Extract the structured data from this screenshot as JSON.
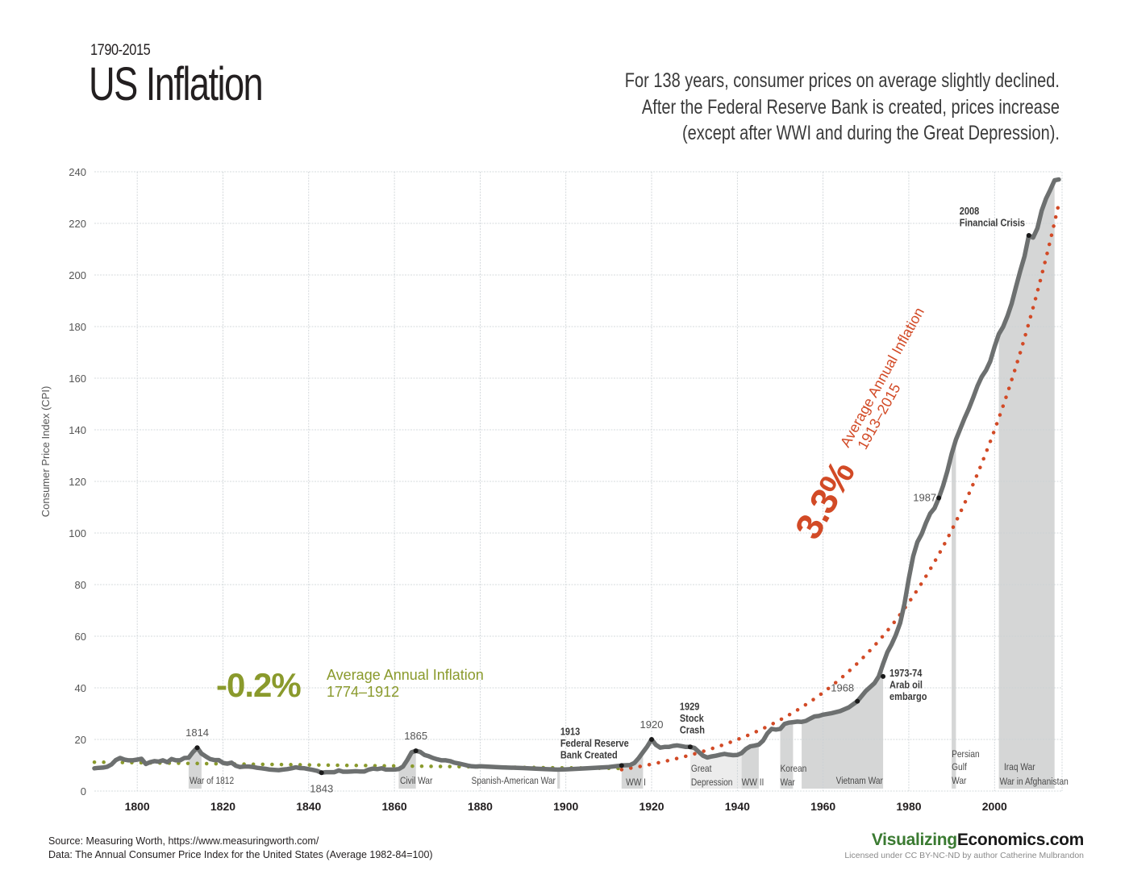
{
  "header": {
    "years": "1790-2015",
    "title": "US Inflation",
    "description": [
      "For 138 years, consumer prices on average slightly declined.",
      "After the Federal Reserve Bank is created, prices increase",
      "(except after WWI and during the Great Depression)."
    ]
  },
  "footer": {
    "source_line": "Source: Measuring Worth, https://www.measuringworth.com/",
    "data_line": "Data: The Annual Consumer Price Index for the United States (Average 1982-84=100)",
    "brand_part1": "Visualizing",
    "brand_part2": "Economics.com",
    "license": "Licensed under CC BY-NC-ND by author Catherine Mulbrandon"
  },
  "colors": {
    "cpi_line": "#6d7070",
    "pre_fed_trend": "#8a9a2c",
    "post_fed_trend": "#d24a26",
    "war_shade": "#d5d6d6",
    "depression_shade": "#ececec",
    "grid": "#c9cfd3"
  },
  "chart_data": {
    "type": "line",
    "title": "US Inflation",
    "xlabel": "",
    "ylabel": "Consumer Price Index (CPI)",
    "xlim": [
      1790,
      2015
    ],
    "ylim": [
      0,
      240
    ],
    "grid": true,
    "x_ticks": [
      1800,
      1820,
      1840,
      1860,
      1880,
      1900,
      1920,
      1940,
      1960,
      1980,
      2000
    ],
    "y_ticks": [
      0,
      20,
      40,
      60,
      80,
      100,
      120,
      140,
      160,
      180,
      200,
      220,
      240
    ],
    "series": [
      {
        "name": "CPI",
        "x": [
          1790,
          1791,
          1792,
          1793,
          1794,
          1795,
          1796,
          1797,
          1798,
          1799,
          1800,
          1801,
          1802,
          1803,
          1804,
          1805,
          1806,
          1807,
          1808,
          1809,
          1810,
          1811,
          1812,
          1813,
          1814,
          1815,
          1816,
          1817,
          1818,
          1819,
          1820,
          1821,
          1822,
          1823,
          1824,
          1825,
          1826,
          1827,
          1828,
          1829,
          1830,
          1831,
          1832,
          1833,
          1834,
          1835,
          1836,
          1837,
          1838,
          1839,
          1840,
          1841,
          1842,
          1843,
          1844,
          1845,
          1846,
          1847,
          1848,
          1849,
          1850,
          1851,
          1852,
          1853,
          1854,
          1855,
          1856,
          1857,
          1858,
          1859,
          1860,
          1861,
          1862,
          1863,
          1864,
          1865,
          1866,
          1867,
          1868,
          1869,
          1870,
          1871,
          1872,
          1873,
          1874,
          1875,
          1876,
          1877,
          1878,
          1879,
          1880,
          1885,
          1890,
          1895,
          1898,
          1900,
          1905,
          1910,
          1913,
          1914,
          1915,
          1916,
          1917,
          1918,
          1919,
          1920,
          1921,
          1922,
          1923,
          1924,
          1925,
          1926,
          1927,
          1928,
          1929,
          1930,
          1931,
          1932,
          1933,
          1934,
          1935,
          1936,
          1937,
          1938,
          1939,
          1940,
          1941,
          1942,
          1943,
          1944,
          1945,
          1946,
          1947,
          1948,
          1949,
          1950,
          1951,
          1952,
          1953,
          1954,
          1955,
          1956,
          1957,
          1958,
          1959,
          1960,
          1962,
          1964,
          1966,
          1968,
          1970,
          1972,
          1973,
          1974,
          1975,
          1976,
          1977,
          1978,
          1979,
          1980,
          1981,
          1982,
          1983,
          1984,
          1985,
          1986,
          1987,
          1988,
          1989,
          1990,
          1991,
          1992,
          1993,
          1994,
          1995,
          1996,
          1997,
          1998,
          1999,
          2000,
          2001,
          2002,
          2003,
          2004,
          2005,
          2006,
          2007,
          2008,
          2009,
          2010,
          2011,
          2012,
          2013,
          2014,
          2015
        ],
        "values": [
          8.8,
          9.0,
          9.1,
          9.4,
          10.3,
          12.0,
          12.8,
          12.2,
          11.9,
          11.9,
          12.2,
          12.5,
          10.5,
          11.2,
          11.6,
          11.4,
          11.9,
          11.2,
          12.4,
          11.9,
          11.9,
          12.8,
          12.9,
          15.1,
          16.8,
          14.5,
          13.4,
          12.4,
          12.0,
          12.0,
          10.9,
          10.6,
          11.0,
          9.8,
          9.3,
          9.5,
          9.5,
          9.3,
          9.0,
          8.8,
          8.6,
          8.3,
          8.2,
          8.1,
          8.3,
          8.5,
          8.8,
          9.2,
          8.9,
          8.8,
          8.5,
          8.2,
          7.8,
          7.1,
          7.3,
          7.3,
          7.3,
          8.0,
          7.5,
          7.5,
          7.6,
          7.7,
          7.6,
          7.6,
          8.3,
          8.7,
          8.5,
          8.8,
          8.3,
          8.3,
          8.3,
          8.5,
          9.5,
          12.0,
          15.0,
          15.6,
          15.2,
          14.0,
          13.5,
          12.8,
          12.3,
          11.9,
          11.9,
          11.6,
          11.0,
          10.7,
          10.3,
          9.9,
          9.6,
          9.5,
          9.6,
          9.2,
          8.9,
          8.5,
          8.3,
          8.4,
          8.8,
          9.3,
          9.9,
          10.0,
          10.1,
          10.9,
          12.8,
          15.1,
          17.3,
          20.0,
          17.9,
          16.8,
          17.1,
          17.1,
          17.5,
          17.7,
          17.4,
          17.1,
          17.1,
          16.7,
          15.2,
          13.7,
          13.0,
          13.4,
          13.7,
          14.1,
          14.4,
          14.1,
          13.9,
          14.0,
          14.7,
          16.3,
          17.3,
          17.6,
          18.0,
          19.5,
          22.3,
          24.1,
          23.8,
          24.1,
          26.0,
          26.5,
          26.7,
          26.9,
          26.8,
          27.2,
          28.1,
          28.9,
          29.1,
          29.6,
          30.2,
          31.0,
          32.4,
          34.8,
          38.8,
          41.8,
          44.4,
          49.3,
          53.8,
          56.9,
          60.6,
          65.2,
          72.6,
          82.4,
          90.9,
          96.5,
          99.6,
          103.9,
          107.6,
          109.6,
          113.6,
          118.3,
          124.0,
          130.7,
          136.2,
          140.3,
          144.5,
          148.2,
          152.4,
          156.9,
          160.5,
          163.0,
          166.6,
          172.2,
          177.1,
          179.9,
          184.0,
          188.9,
          195.3,
          201.6,
          207.3,
          215.3,
          214.5,
          218.1,
          224.9,
          229.6,
          233.0,
          236.7,
          237.0
        ]
      },
      {
        "name": "Average Annual Inflation 1774-1912 trend",
        "rate_percent": -0.2,
        "x_range": [
          1790,
          1913
        ],
        "start_value": 11.2
      },
      {
        "name": "Average Annual Inflation 1913-2015 trend",
        "rate_percent": 3.3,
        "x_range": [
          1913,
          2015
        ],
        "start_value": 8.3
      }
    ],
    "shaded_periods": [
      {
        "label": "War of  1812",
        "start": 1812,
        "end": 1815,
        "kind": "war"
      },
      {
        "label": "Civil  War",
        "start": 1861,
        "end": 1865,
        "kind": "war"
      },
      {
        "label": "Spanish-American War",
        "start": 1898,
        "end": 1898.6,
        "kind": "war"
      },
      {
        "label": "WW I",
        "start": 1913,
        "end": 1918,
        "kind": "war"
      },
      {
        "label": "Great Depression",
        "start": 1929,
        "end": 1941,
        "kind": "depression"
      },
      {
        "label": "WW II",
        "start": 1941,
        "end": 1945,
        "kind": "war"
      },
      {
        "label": "Korean War",
        "start": 1950,
        "end": 1953,
        "kind": "war"
      },
      {
        "label": "Vietnam War",
        "start": 1955,
        "end": 1974,
        "kind": "war"
      },
      {
        "label": "Persian Gulf War",
        "start": 1990,
        "end": 1991,
        "kind": "war"
      },
      {
        "label": "Iraq War / War in Afghanistan",
        "start": 2001,
        "end": 2014,
        "kind": "war"
      }
    ],
    "point_labels": [
      {
        "year": 1814,
        "value": 16.8,
        "label": "1814"
      },
      {
        "year": 1843,
        "value": 7.1,
        "label": "1843"
      },
      {
        "year": 1865,
        "value": 15.6,
        "label": "1865"
      },
      {
        "year": 1920,
        "value": 20.0,
        "label": "1920"
      },
      {
        "year": 1968,
        "value": 34.8,
        "label": "1968"
      },
      {
        "year": 1987,
        "value": 113.6,
        "label": "1987"
      }
    ],
    "event_labels": [
      {
        "year": 1913,
        "value": 9.9,
        "lines": [
          "1913",
          "Federal Reserve",
          "Bank Created"
        ]
      },
      {
        "year": 1929,
        "value": 17.1,
        "lines": [
          "1929",
          "Stock",
          "Crash"
        ]
      },
      {
        "year": 1974,
        "value": 44.4,
        "lines": [
          "1973-74",
          "Arab oil",
          "embargo"
        ]
      },
      {
        "year": 2008,
        "value": 215.3,
        "lines": [
          "2008",
          "Financial Crisis"
        ]
      }
    ],
    "annotations": {
      "pre_fed": {
        "big": "-0.2%",
        "line1": "Average Annual Inflation",
        "line2": "1774–1912"
      },
      "post_fed": {
        "big": "3.3%",
        "line1": "Average Annual Inflation",
        "line2": "1913–2015"
      }
    }
  }
}
